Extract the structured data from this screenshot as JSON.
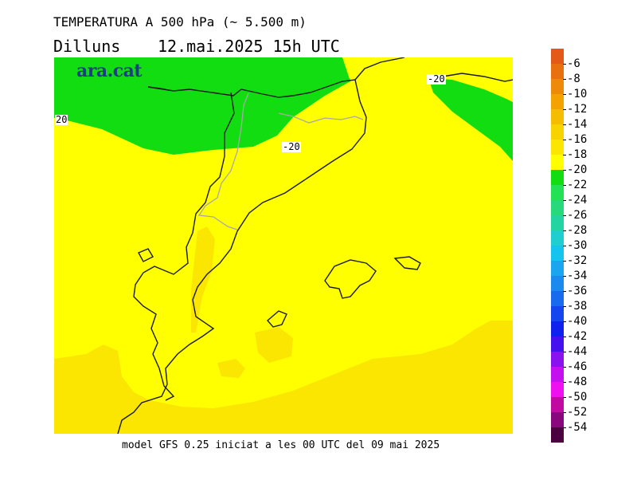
{
  "header": {
    "title": "TEMPERATURA A 500 hPa (~ 5.500 m)",
    "day": "Dilluns",
    "date": "12.mai.2025 15h UTC"
  },
  "brand": {
    "logo_text": "ara.cat"
  },
  "contour_labels": [
    "20",
    "-20",
    "-20"
  ],
  "footer": {
    "model_text": "model GFS 0.25 iniciat a les 00 UTC del 09 mai 2025"
  },
  "legend": {
    "ticks": [
      "-6",
      "-8",
      "-10",
      "-12",
      "-14",
      "-16",
      "-18",
      "-20",
      "-22",
      "-24",
      "-26",
      "-28",
      "-30",
      "-32",
      "-34",
      "-36",
      "-38",
      "-40",
      "-42",
      "-44",
      "-46",
      "-48",
      "-50",
      "-52",
      "-54"
    ],
    "colors": [
      "#e25a16",
      "#e8700f",
      "#ee8a0a",
      "#f2a300",
      "#f5bd00",
      "#f7d400",
      "#fae600",
      "#ffff00",
      "#11dd11",
      "#22e155",
      "#27d97a",
      "#22d4a0",
      "#1fcfcf",
      "#12c4ee",
      "#1aa5ef",
      "#1b8aef",
      "#186bee",
      "#1545ee",
      "#1020ee",
      "#4411ee",
      "#8a12ee",
      "#c40fee",
      "#ee10ee",
      "#c00aa0",
      "#8a067d",
      "#4b0040"
    ]
  },
  "map_colors": {
    "yellow": "#ffff00",
    "gold": "#fae600",
    "green": "#11dd11",
    "coast": "#1a1a1a",
    "border": "#a8a8a8"
  }
}
